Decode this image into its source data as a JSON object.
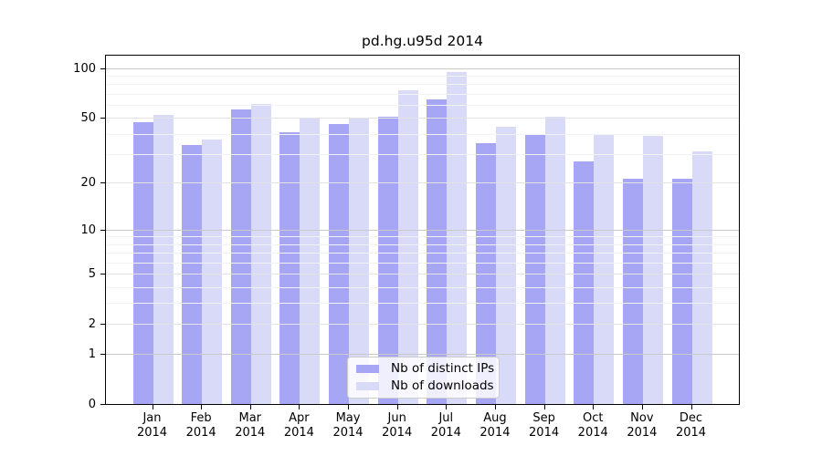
{
  "chart_data": {
    "type": "bar",
    "title": "pd.hg.u95d 2014",
    "categories": [
      "Jan",
      "Feb",
      "Mar",
      "Apr",
      "May",
      "Jun",
      "Jul",
      "Aug",
      "Sep",
      "Oct",
      "Nov",
      "Dec"
    ],
    "category_year": "2014",
    "series": [
      {
        "name": "Nb of distinct IPs",
        "color": "#a6a6f4",
        "values": [
          47,
          34,
          56,
          41,
          46,
          51,
          65,
          35,
          40,
          27,
          21,
          21
        ]
      },
      {
        "name": "Nb of downloads",
        "color": "#d9d9f8",
        "values": [
          52,
          37,
          61,
          50,
          50,
          74,
          95,
          44,
          51,
          40,
          39,
          31
        ]
      }
    ],
    "yscale": "log1p",
    "ylim": [
      0,
      119
    ],
    "ytick_labels": [
      "100",
      "50",
      "20",
      "10",
      "5",
      "2",
      "1",
      "0"
    ],
    "ytick_values": [
      100,
      50,
      20,
      10,
      5,
      2,
      1,
      0
    ],
    "grid": {
      "decade": [
        1,
        10,
        100
      ],
      "labeled": [
        2,
        5,
        20,
        50
      ],
      "minor": [
        3,
        4,
        6,
        7,
        8,
        9,
        30,
        40,
        60,
        70,
        80,
        90
      ]
    },
    "legend_position": "bottom-center",
    "colors": {
      "bar_distinct_ips": "#a6a6f4",
      "bar_downloads": "#d9d9f8",
      "grid_decade": "#c9c9c9",
      "grid_labeled": "#e3e3e3",
      "grid_minor": "#f2f2f2",
      "axis": "#000000",
      "background": "#ffffff"
    }
  }
}
